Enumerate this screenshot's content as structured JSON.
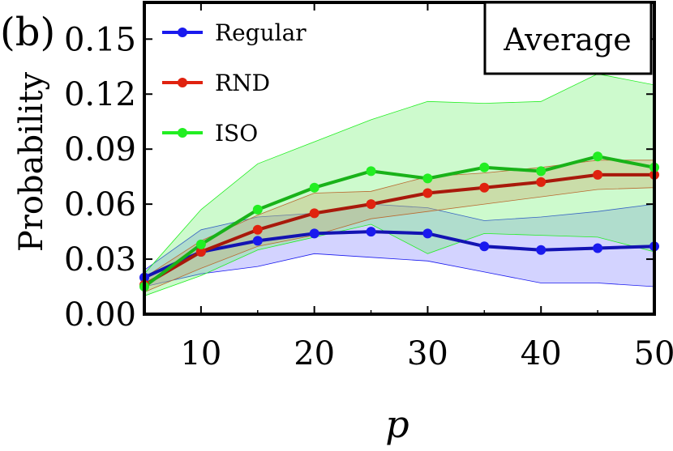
{
  "panel_label": "(b)",
  "chart_data": {
    "type": "line",
    "annotation_box": "Average",
    "xlabel": "p",
    "ylabel": "Probability",
    "xlim": [
      5,
      50
    ],
    "ylim": [
      0.0,
      0.17
    ],
    "x_ticks": [
      10,
      20,
      30,
      40,
      50
    ],
    "x_tick_labels": [
      "10",
      "20",
      "30",
      "40",
      "50"
    ],
    "y_ticks": [
      0.0,
      0.03,
      0.06,
      0.09,
      0.12,
      0.15
    ],
    "y_tick_labels": [
      "0.00",
      "0.03",
      "0.06",
      "0.09",
      "0.12",
      "0.15"
    ],
    "grid": false,
    "legend_position": "top-left",
    "x": [
      5,
      10,
      15,
      20,
      25,
      30,
      35,
      40,
      45,
      50
    ],
    "series": [
      {
        "name": "Regular",
        "color": "#1a1aee",
        "band_fill": "#8080ff",
        "values": [
          0.02,
          0.034,
          0.04,
          0.044,
          0.045,
          0.044,
          0.037,
          0.035,
          0.036,
          0.037
        ],
        "band_upper": [
          0.024,
          0.046,
          0.053,
          0.055,
          0.06,
          0.058,
          0.051,
          0.053,
          0.056,
          0.06
        ],
        "band_lower": [
          0.015,
          0.022,
          0.026,
          0.033,
          0.031,
          0.029,
          0.023,
          0.017,
          0.017,
          0.015
        ]
      },
      {
        "name": "RND",
        "color": "#e0220f",
        "band_fill": "#f08060",
        "values": [
          0.016,
          0.034,
          0.046,
          0.055,
          0.06,
          0.066,
          0.069,
          0.072,
          0.076,
          0.076
        ],
        "band_upper": [
          0.02,
          0.04,
          0.054,
          0.066,
          0.067,
          0.075,
          0.077,
          0.08,
          0.084,
          0.084
        ],
        "band_lower": [
          0.012,
          0.025,
          0.037,
          0.043,
          0.052,
          0.056,
          0.06,
          0.064,
          0.068,
          0.069
        ]
      },
      {
        "name": "ISO",
        "color": "#22ee22",
        "band_fill": "#70f070",
        "values": [
          0.015,
          0.038,
          0.057,
          0.069,
          0.078,
          0.074,
          0.08,
          0.078,
          0.086,
          0.08
        ],
        "band_upper": [
          0.022,
          0.057,
          0.082,
          0.094,
          0.106,
          0.116,
          0.115,
          0.116,
          0.131,
          0.125
        ],
        "band_lower": [
          0.01,
          0.021,
          0.035,
          0.042,
          0.049,
          0.033,
          0.044,
          0.043,
          0.042,
          0.034
        ]
      }
    ]
  }
}
